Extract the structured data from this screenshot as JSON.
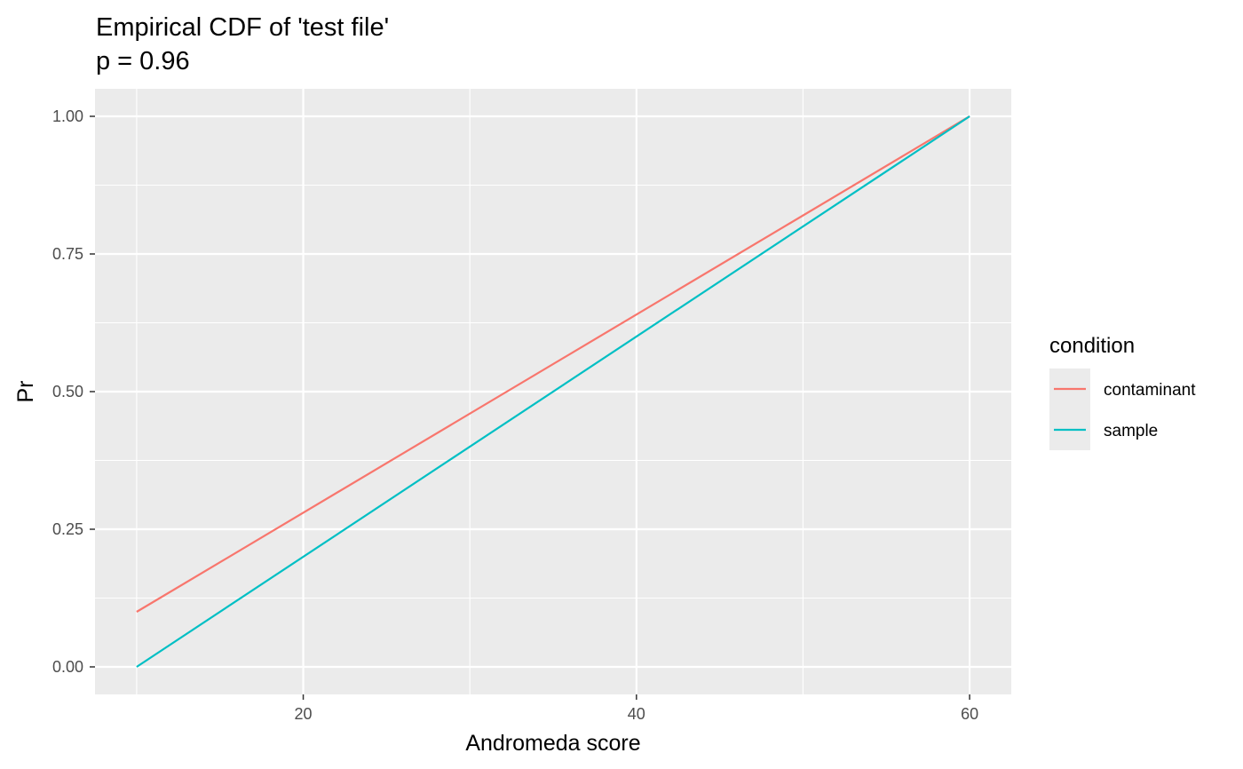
{
  "chart_data": {
    "type": "line",
    "title": "Empirical CDF of 'test file'",
    "subtitle": "p = 0.96",
    "xlabel": "Andromeda score",
    "ylabel": "Pr",
    "xlim": [
      7.5,
      62.5
    ],
    "ylim": [
      -0.05,
      1.05
    ],
    "x_ticks": [
      20,
      40,
      60
    ],
    "x_tick_labels": [
      "20",
      "40",
      "60"
    ],
    "x_minor_ticks": [
      10,
      30,
      50
    ],
    "y_ticks": [
      0,
      0.25,
      0.5,
      0.75,
      1
    ],
    "y_tick_labels": [
      "0.00",
      "0.25",
      "0.50",
      "0.75",
      "1.00"
    ],
    "y_minor_ticks": [
      0.125,
      0.375,
      0.625,
      0.875
    ],
    "grid": true,
    "legend": {
      "title": "condition",
      "position": "right"
    },
    "series": [
      {
        "name": "contaminant",
        "color": "#F8766D",
        "x": [
          10,
          60
        ],
        "y": [
          0.1,
          1.0
        ]
      },
      {
        "name": "sample",
        "color": "#00BFC4",
        "x": [
          10,
          60
        ],
        "y": [
          0.0,
          1.0
        ]
      }
    ]
  }
}
